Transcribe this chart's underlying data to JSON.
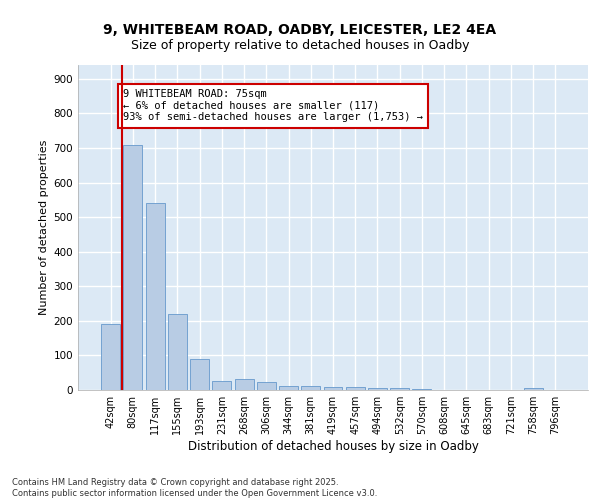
{
  "title1": "9, WHITEBEAM ROAD, OADBY, LEICESTER, LE2 4EA",
  "title2": "Size of property relative to detached houses in Oadby",
  "xlabel": "Distribution of detached houses by size in Oadby",
  "ylabel": "Number of detached properties",
  "categories": [
    "42sqm",
    "80sqm",
    "117sqm",
    "155sqm",
    "193sqm",
    "231sqm",
    "268sqm",
    "306sqm",
    "344sqm",
    "381sqm",
    "419sqm",
    "457sqm",
    "494sqm",
    "532sqm",
    "570sqm",
    "608sqm",
    "645sqm",
    "683sqm",
    "721sqm",
    "758sqm",
    "796sqm"
  ],
  "values": [
    190,
    710,
    540,
    220,
    90,
    25,
    32,
    22,
    12,
    11,
    10,
    8,
    6,
    5,
    4,
    0,
    0,
    0,
    0,
    7,
    0
  ],
  "bar_color": "#b8cce4",
  "bar_edge_color": "#6699cc",
  "background_color": "#dce9f5",
  "grid_color": "#ffffff",
  "annotation_box_color": "#cc0000",
  "annotation_text": "9 WHITEBEAM ROAD: 75sqm\n← 6% of detached houses are smaller (117)\n93% of semi-detached houses are larger (1,753) →",
  "vline_x": 0.5,
  "vline_color": "#cc0000",
  "ylim": [
    0,
    940
  ],
  "yticks": [
    0,
    100,
    200,
    300,
    400,
    500,
    600,
    700,
    800,
    900
  ],
  "footer": "Contains HM Land Registry data © Crown copyright and database right 2025.\nContains public sector information licensed under the Open Government Licence v3.0.",
  "annotation_fontsize": 7.5,
  "title_fontsize1": 10,
  "title_fontsize2": 9
}
